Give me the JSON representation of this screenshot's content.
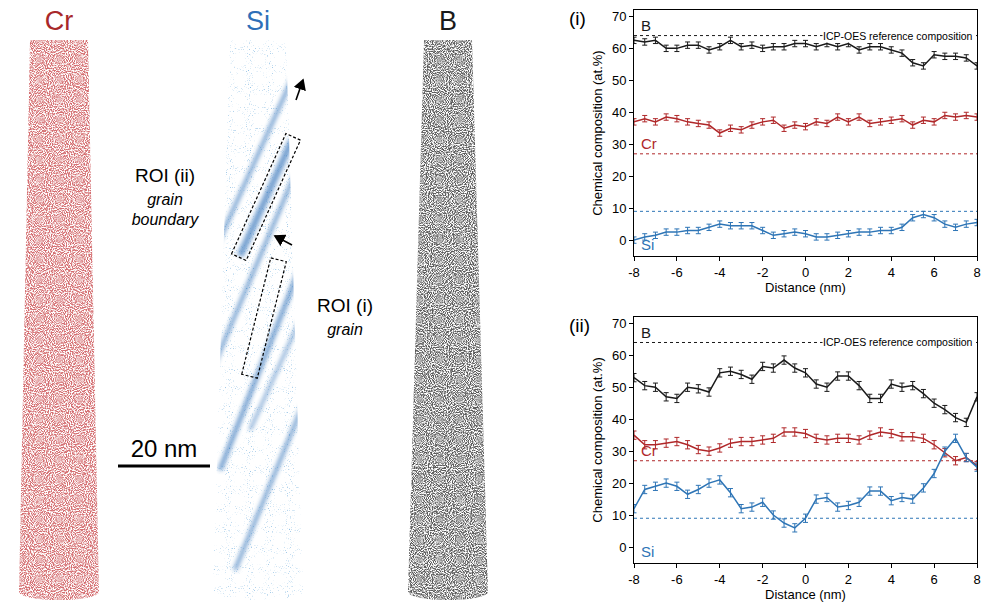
{
  "atom_maps": {
    "elements": [
      {
        "label": "Cr",
        "color": "#a8282a"
      },
      {
        "label": "Si",
        "color": "#2e6fb8"
      },
      {
        "label": "B",
        "color": "#1a1a1a"
      }
    ],
    "rois": [
      {
        "label": "ROI (ii)",
        "description": "grain boundary"
      },
      {
        "label": "ROI (i)",
        "description": "grain"
      }
    ],
    "scale_bar": "20 nm"
  },
  "chart_data": [
    {
      "type": "line",
      "panel": "(i)",
      "xlabel": "Distance (nm)",
      "ylabel": "Chemical composition (at.%)",
      "reference_label": "ICP-OES reference composition",
      "x": [
        -8,
        -7.5,
        -7,
        -6.5,
        -6,
        -5.5,
        -5,
        -4.5,
        -4,
        -3.5,
        -3,
        -2.5,
        -2,
        -1.5,
        -1,
        -0.5,
        0,
        0.5,
        1,
        1.5,
        2,
        2.5,
        3,
        3.5,
        4,
        4.5,
        5,
        5.5,
        6,
        6.5,
        7,
        7.5,
        8
      ],
      "series": [
        {
          "name": "B",
          "color": "#1a1a1a",
          "reference": 64,
          "error": 1,
          "values": [
            62.5,
            62,
            62.5,
            60,
            60,
            61,
            61,
            59.5,
            60.5,
            62.5,
            60.5,
            61,
            60,
            60.5,
            60.5,
            61.5,
            61.5,
            60.5,
            61.5,
            60.5,
            61.5,
            59.5,
            60.5,
            60.5,
            59.5,
            58.5,
            55.5,
            54.5,
            58,
            57.5,
            57.5,
            57,
            54.5
          ]
        },
        {
          "name": "Cr",
          "color": "#b0282a",
          "reference": 27,
          "error": 1,
          "values": [
            37,
            38,
            37,
            38.5,
            38,
            37,
            36.5,
            36,
            33.5,
            35,
            34.5,
            36,
            37,
            37.5,
            35,
            36,
            35.5,
            37,
            36.5,
            38.5,
            37,
            38.5,
            36.5,
            37,
            37.5,
            38,
            36,
            37.5,
            37,
            39,
            38.5,
            39,
            38.5
          ]
        },
        {
          "name": "Si",
          "color": "#2e75b6",
          "reference": 9,
          "error": 1,
          "values": [
            0,
            1,
            1.5,
            2.5,
            2.5,
            3,
            3,
            4,
            5,
            4.5,
            4.5,
            4.5,
            3,
            1.5,
            2,
            2.5,
            2,
            1,
            1,
            1.5,
            2,
            2.5,
            2.5,
            3,
            3,
            4,
            7,
            8,
            7,
            5,
            4,
            5,
            5.5
          ]
        }
      ],
      "xlim": [
        -8,
        8
      ],
      "ylim": [
        -5,
        72
      ],
      "xticks": [
        -8,
        -6,
        -4,
        -2,
        0,
        2,
        4,
        6,
        8
      ],
      "yticks": [
        0,
        10,
        20,
        30,
        40,
        50,
        60,
        70
      ],
      "grid": false
    },
    {
      "type": "line",
      "panel": "(ii)",
      "xlabel": "Distance (nm)",
      "ylabel": "Chemical composition (at.%)",
      "reference_label": "ICP-OES reference composition",
      "x": [
        -8,
        -7.5,
        -7,
        -6.5,
        -6,
        -5.5,
        -5,
        -4.5,
        -4,
        -3.5,
        -3,
        -2.5,
        -2,
        -1.5,
        -1,
        -0.5,
        0,
        0.5,
        1,
        1.5,
        2,
        2.5,
        3,
        3.5,
        4,
        4.5,
        5,
        5.5,
        6,
        6.5,
        7,
        7.5,
        8
      ],
      "series": [
        {
          "name": "B",
          "color": "#1a1a1a",
          "reference": 64,
          "error": 1.3,
          "values": [
            53,
            50.5,
            50,
            47,
            46.5,
            50,
            49.5,
            48.5,
            54.5,
            55,
            54,
            52.5,
            56.5,
            56,
            58.5,
            56,
            54.5,
            51,
            50,
            53.5,
            53.5,
            50.5,
            46.5,
            46.5,
            51,
            50,
            50.5,
            48,
            45,
            43,
            40.5,
            39,
            47
          ]
        },
        {
          "name": "Cr",
          "color": "#b0282a",
          "reference": 27,
          "error": 1.3,
          "values": [
            35,
            32,
            32,
            32.5,
            33,
            32,
            30.5,
            30,
            31,
            32.5,
            33,
            33,
            33.5,
            34,
            36,
            36,
            35.5,
            34,
            33.5,
            34,
            34,
            33.5,
            35,
            36,
            35.5,
            34.5,
            34.5,
            34,
            32,
            29.5,
            27,
            28,
            25.5
          ]
        },
        {
          "name": "Si",
          "color": "#2e75b6",
          "reference": 9,
          "error": 1.3,
          "values": [
            12,
            18,
            19,
            20,
            19,
            16.5,
            18,
            20,
            21,
            17,
            12,
            12.5,
            14,
            10,
            7.5,
            6,
            9,
            15,
            15.5,
            12.5,
            13,
            14,
            17.5,
            17.5,
            14.5,
            15.5,
            15,
            18.5,
            23,
            30,
            34,
            28,
            25
          ]
        }
      ],
      "xlim": [
        -8,
        8
      ],
      "ylim": [
        -5,
        72
      ],
      "xticks": [
        -8,
        -6,
        -4,
        -2,
        0,
        2,
        4,
        6,
        8
      ],
      "yticks": [
        0,
        10,
        20,
        30,
        40,
        50,
        60,
        70
      ],
      "grid": false
    }
  ]
}
